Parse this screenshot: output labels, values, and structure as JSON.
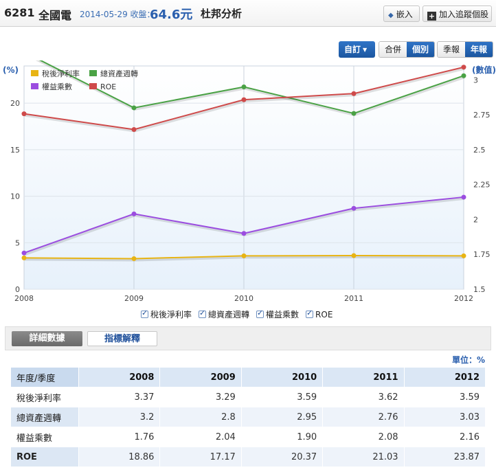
{
  "header": {
    "code": "6281",
    "name": "全國電",
    "date_label": "2014-05-29 收盤：",
    "price": "64.6元",
    "analysis": "杜邦分析",
    "embed_label": "嵌入",
    "track_label": "加入追蹤個股"
  },
  "controls": {
    "custom_label": "自訂",
    "merge_label": "合併",
    "single_label": "個別",
    "quarterly_label": "季報",
    "annual_label": "年報"
  },
  "chart_data": {
    "type": "line",
    "categories": [
      "2008",
      "2009",
      "2010",
      "2011",
      "2012"
    ],
    "left_axis_label": "(%)",
    "right_axis_label": "(數值)",
    "left_ylim": [
      0,
      24
    ],
    "left_ticks": [
      0,
      5,
      10,
      15,
      20
    ],
    "right_ylim": [
      1.5,
      3.1
    ],
    "right_ticks": [
      "1.5",
      "1.75",
      "2",
      "2.25",
      "2.5",
      "2.75",
      "3"
    ],
    "grid": true,
    "legend_position": "top-left",
    "series": [
      {
        "name": "稅後淨利率",
        "axis": "left",
        "color": "#e8b414",
        "values": [
          3.37,
          3.29,
          3.59,
          3.62,
          3.59
        ]
      },
      {
        "name": "總資產週轉",
        "axis": "right",
        "color": "#4aa245",
        "values": [
          3.2,
          2.8,
          2.95,
          2.76,
          3.03
        ]
      },
      {
        "name": "權益乘數",
        "axis": "right",
        "color": "#9b4de0",
        "values": [
          1.76,
          2.04,
          1.9,
          2.08,
          2.16
        ]
      },
      {
        "name": "ROE",
        "axis": "left",
        "color": "#cf4a4a",
        "values": [
          18.86,
          17.17,
          20.37,
          21.03,
          23.87
        ]
      }
    ]
  },
  "bottom_legend": [
    "稅後淨利率",
    "總資產週轉",
    "權益乘數",
    "ROE"
  ],
  "tabs": {
    "detail": "詳細數據",
    "explain": "指標解釋"
  },
  "unit_label": "單位：%",
  "table": {
    "header": [
      "年度/季度",
      "2008",
      "2009",
      "2010",
      "2011",
      "2012"
    ],
    "rows": [
      [
        "稅後淨利率",
        "3.37",
        "3.29",
        "3.59",
        "3.62",
        "3.59"
      ],
      [
        "總資產週轉",
        "3.2",
        "2.8",
        "2.95",
        "2.76",
        "3.03"
      ],
      [
        "權益乘數",
        "1.76",
        "2.04",
        "1.90",
        "2.08",
        "2.16"
      ],
      [
        "ROE",
        "18.86",
        "17.17",
        "20.37",
        "21.03",
        "23.87"
      ]
    ]
  }
}
